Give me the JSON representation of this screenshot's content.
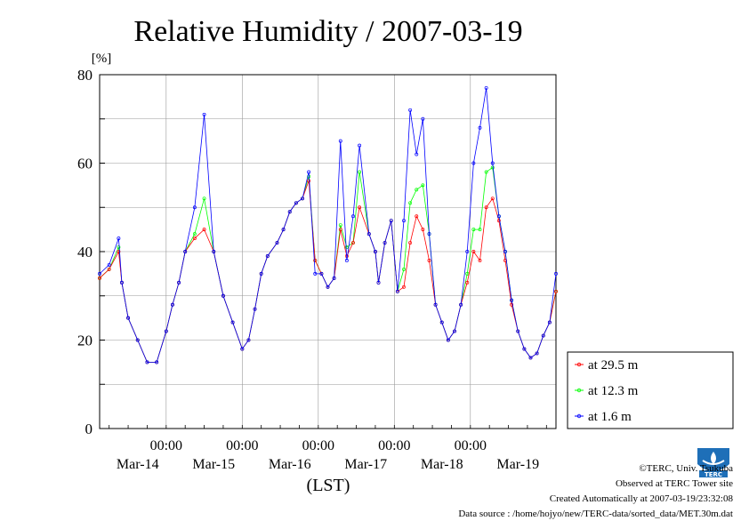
{
  "chart_data": {
    "type": "line",
    "title": "Relative Humidity / 2007-03-19",
    "ylabel": "[%]",
    "xlabel": "(LST)",
    "ylim": [
      0,
      80
    ],
    "yticks": [
      0,
      20,
      40,
      60,
      80
    ],
    "xlim": [
      0,
      144
    ],
    "time_tick_label": "00:00",
    "time_ticks": [
      21,
      45,
      69,
      93,
      117
    ],
    "day_labels": [
      "Mar-14",
      "Mar-15",
      "Mar-16",
      "Mar-17",
      "Mar-18",
      "Mar-19"
    ],
    "day_label_positions": [
      12,
      36,
      60,
      84,
      108,
      132
    ],
    "grid": true,
    "legend_position": "bottom-right, outside plot",
    "x_unit": "hours since 2007-03-14 03:00 LST",
    "x": [
      0,
      3,
      6,
      7,
      9,
      12,
      15,
      18,
      21,
      23,
      25,
      27,
      30,
      33,
      36,
      39,
      42,
      45,
      47,
      49,
      51,
      53,
      56,
      58,
      60,
      62,
      64,
      66,
      68,
      70,
      72,
      74,
      76,
      78,
      80,
      82,
      85,
      87,
      88,
      90,
      92,
      94,
      96,
      98,
      100,
      102,
      104,
      106,
      108,
      110,
      112,
      114,
      116,
      118,
      120,
      122,
      124,
      126,
      128,
      130,
      132,
      134,
      136,
      138,
      140,
      142,
      144
    ],
    "series": [
      {
        "name": "at 29.5 m",
        "color": "#ff0000",
        "values": [
          34,
          36,
          40,
          33,
          25,
          20,
          15,
          15,
          22,
          28,
          33,
          40,
          43,
          45,
          40,
          30,
          24,
          18,
          20,
          27,
          35,
          39,
          42,
          45,
          49,
          51,
          52,
          56,
          38,
          35,
          32,
          34,
          45,
          39,
          42,
          50,
          44,
          40,
          33,
          42,
          47,
          31,
          32,
          42,
          48,
          45,
          38,
          28,
          24,
          20,
          22,
          28,
          33,
          40,
          38,
          50,
          52,
          47,
          38,
          28,
          22,
          18,
          16,
          17,
          21,
          24,
          31
        ]
      },
      {
        "name": "at 12.3 m",
        "color": "#00ff00",
        "values": [
          34,
          36,
          41,
          33,
          25,
          20,
          15,
          15,
          22,
          28,
          33,
          40,
          44,
          52,
          40,
          30,
          24,
          18,
          20,
          27,
          35,
          39,
          42,
          45,
          49,
          51,
          52,
          57,
          38,
          35,
          32,
          34,
          46,
          41,
          42,
          58,
          44,
          40,
          33,
          42,
          47,
          31,
          36,
          51,
          54,
          55,
          44,
          28,
          24,
          20,
          22,
          28,
          35,
          45,
          45,
          58,
          59,
          48,
          40,
          29,
          22,
          18,
          16,
          17,
          21,
          24,
          31
        ]
      },
      {
        "name": "at 1.6 m",
        "color": "#0000ff",
        "values": [
          35,
          37,
          43,
          33,
          25,
          20,
          15,
          15,
          22,
          28,
          33,
          40,
          50,
          71,
          40,
          30,
          24,
          18,
          20,
          27,
          35,
          39,
          42,
          45,
          49,
          51,
          52,
          58,
          35,
          35,
          32,
          34,
          65,
          38,
          48,
          64,
          44,
          40,
          33,
          42,
          47,
          31,
          47,
          72,
          62,
          70,
          44,
          28,
          24,
          20,
          22,
          28,
          40,
          60,
          68,
          77,
          60,
          48,
          40,
          29,
          22,
          18,
          16,
          17,
          21,
          24,
          35
        ]
      }
    ]
  },
  "footer": {
    "copyright": "©TERC, Univ. Tsukuba",
    "site": "Observed at TERC Tower site",
    "created": "Created Automatically at 2007-03-19/23:32:08",
    "source": "Data source : /home/hojyo/new/TERC-data/sorted_data/MET.30m.dat"
  },
  "logo": {
    "text": "TERC",
    "color": "#1e6fb8"
  }
}
